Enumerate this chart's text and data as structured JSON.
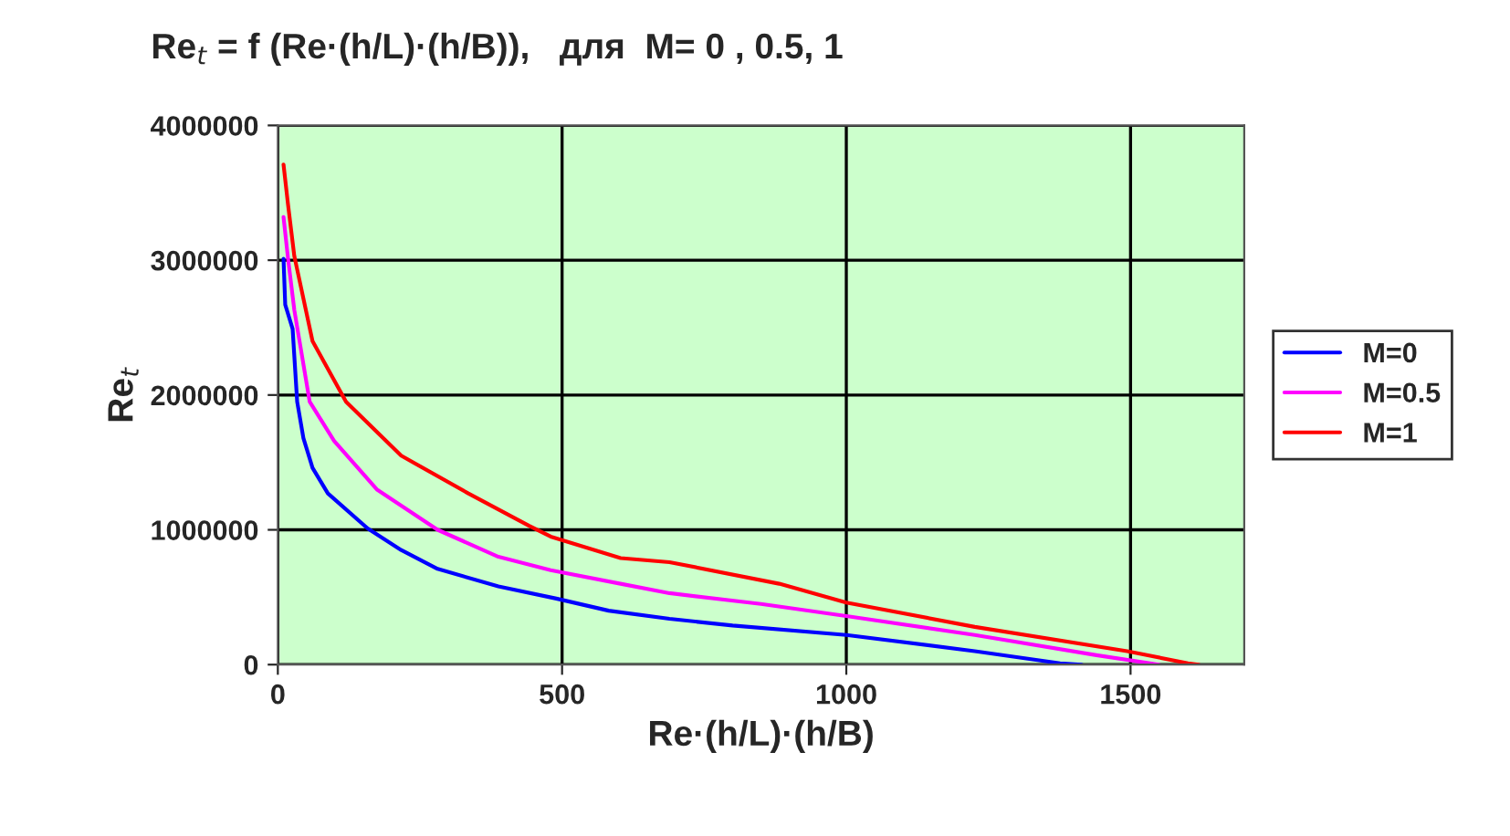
{
  "chart_data": {
    "type": "line",
    "title": "Re$_{t}$ = f (Re·(h/L)·(h/B)),   для  M= 0 , 0.5, 1",
    "xlabel": "Re·(h/L)·(h/B)",
    "ylabel": "Re$_{t}$",
    "xlim": [
      0,
      1700
    ],
    "xticks": [
      0,
      500,
      1000,
      1500
    ],
    "ylim": [
      0,
      4000000
    ],
    "yticks": [
      0,
      1000000,
      2000000,
      3000000,
      4000000
    ],
    "grid": true,
    "legend": "right",
    "marker": "none",
    "line_style": "solid",
    "series": [
      {
        "name": "M=0",
        "color": "#0000ff",
        "x": [
          10,
          13,
          26,
          34,
          45,
          61,
          88,
          158,
          217,
          281,
          388,
          490,
          582,
          689,
          800,
          1000,
          1226,
          1376,
          1414
        ],
        "values": [
          3010000,
          2670000,
          2490000,
          1950000,
          1680000,
          1460000,
          1270000,
          1010000,
          850000,
          710000,
          580000,
          490000,
          400000,
          340000,
          290000,
          220000,
          100000,
          10000,
          0
        ]
      },
      {
        "name": "M=0.5",
        "color": "#ff00ff",
        "x": [
          10,
          18,
          29,
          56,
          99,
          174,
          281,
          388,
          480,
          603,
          689,
          850,
          1000,
          1226,
          1440,
          1550
        ],
        "values": [
          3320000,
          3010000,
          2630000,
          1950000,
          1660000,
          1300000,
          1000000,
          800000,
          700000,
          600000,
          530000,
          450000,
          360000,
          220000,
          70000,
          0
        ]
      },
      {
        "name": "M=1",
        "color": "#ff0000",
        "x": [
          10,
          18,
          29,
          61,
          120,
          217,
          335,
          442,
          480,
          603,
          689,
          882,
          1000,
          1226,
          1494,
          1601,
          1620
        ],
        "values": [
          3710000,
          3410000,
          3030000,
          2400000,
          1950000,
          1550000,
          1270000,
          1030000,
          950000,
          790000,
          760000,
          600000,
          460000,
          280000,
          100000,
          10000,
          0
        ]
      }
    ]
  }
}
